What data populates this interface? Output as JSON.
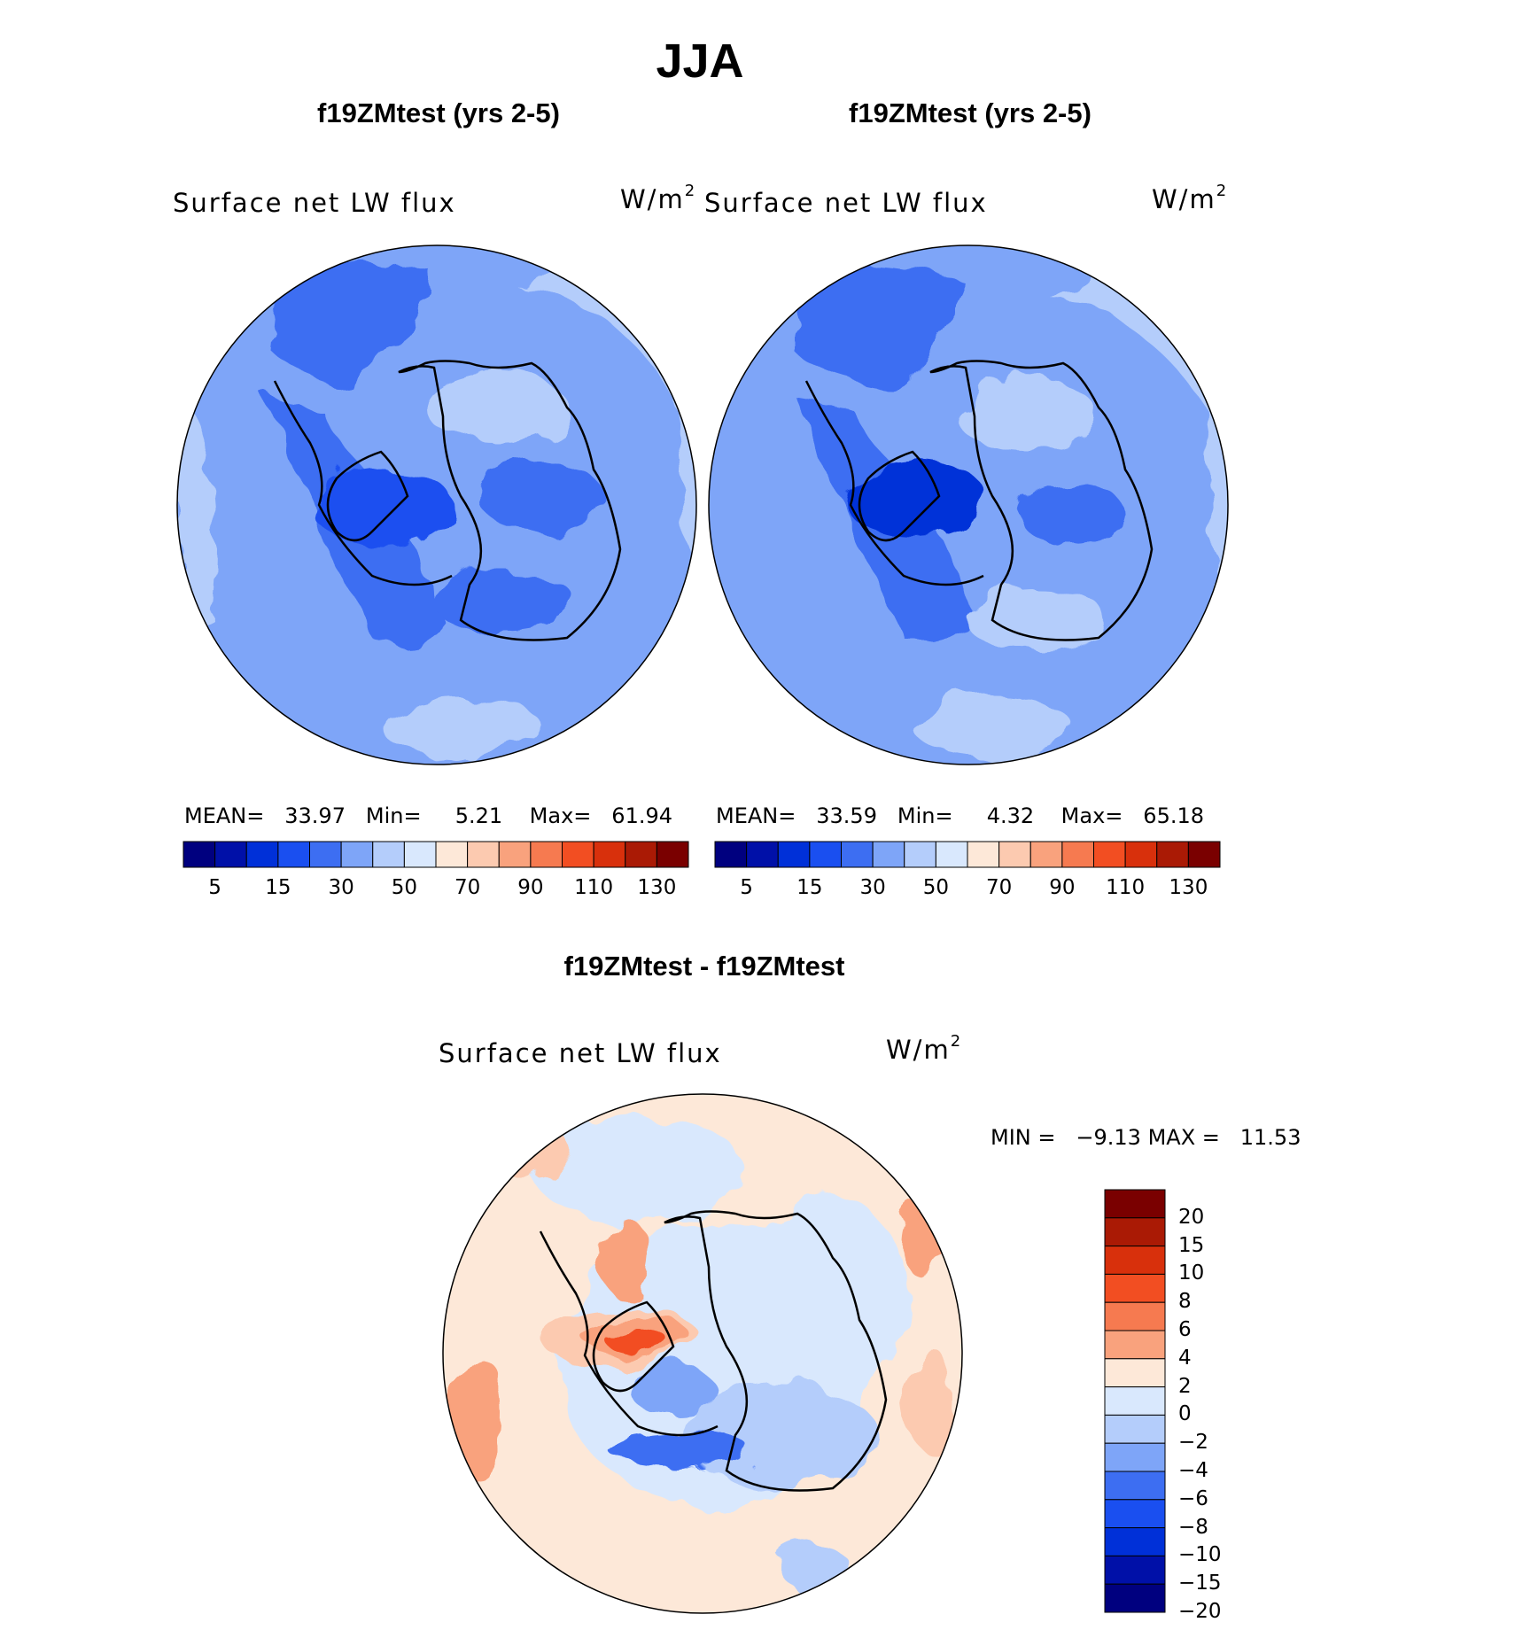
{
  "figure": {
    "title": "JJA"
  },
  "panels": [
    {
      "case_title": "f19ZMtest (yrs 2-5)",
      "variable": "Surface net LW flux",
      "units": "W/m",
      "units_exp": "2",
      "stats": {
        "mean_label": "MEAN=",
        "mean": "33.97",
        "min_label": "Min=",
        "min": "5.21",
        "max_label": "Max=",
        "max": "61.94"
      }
    },
    {
      "case_title": "f19ZMtest (yrs 2-5)",
      "variable": "Surface net LW flux",
      "units": "W/m",
      "units_exp": "2",
      "stats": {
        "mean_label": "MEAN=",
        "mean": "33.59",
        "min_label": "Min=",
        "min": "4.32",
        "max_label": "Max=",
        "max": "65.18"
      }
    }
  ],
  "diff_panel": {
    "case_title": "f19ZMtest - f19ZMtest",
    "variable": "Surface net LW flux",
    "units": "W/m",
    "units_exp": "2",
    "stats": {
      "min_label": "MIN =",
      "min": "−9.13",
      "max_label": "MAX =",
      "max": "11.53"
    }
  },
  "colorbar_main": {
    "colors": [
      "#00007f",
      "#0010a8",
      "#0030d8",
      "#1a4ff0",
      "#3d6ef2",
      "#7ea5f8",
      "#b4cdfb",
      "#d9e8fd",
      "#fde8d8",
      "#fccab0",
      "#f9a27d",
      "#f67a50",
      "#f24e22",
      "#d8300c",
      "#aa1a05",
      "#7a0000"
    ],
    "tick_labels": [
      "5",
      "15",
      "30",
      "50",
      "70",
      "90",
      "110",
      "130"
    ]
  },
  "colorbar_diff": {
    "colors": [
      "#7a0000",
      "#aa1a05",
      "#d8300c",
      "#f24e22",
      "#f67a50",
      "#f9a27d",
      "#fde8d8",
      "#d9e8fd",
      "#b4cdfb",
      "#7ea5f8",
      "#3d6ef2",
      "#1a4ff0",
      "#0030d8",
      "#0010a8",
      "#00007f"
    ],
    "tick_labels": [
      "20",
      "15",
      "10",
      "8",
      "6",
      "4",
      "2",
      "0",
      "−2",
      "−4",
      "−6",
      "−8",
      "−10",
      "−15",
      "−20"
    ]
  }
}
